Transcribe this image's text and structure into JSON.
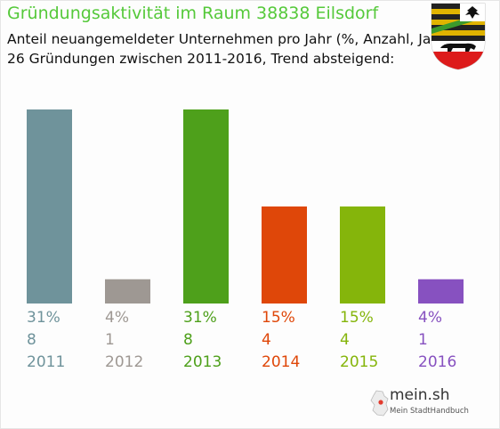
{
  "title": "Gründungsaktivität im Raum 38838 Eilsdorf",
  "subtitle_1": "Anteil neuangemeldeter Unternehmen pro Jahr (%, Anzahl, Jahr)",
  "subtitle_2": "26 Gründungen zwischen 2011-2016, Trend absteigend:",
  "brand": {
    "name": "mein.sh",
    "tagline": "Mein StadtHandbuch"
  },
  "chart_data": {
    "type": "bar",
    "categories": [
      "2011",
      "2012",
      "2013",
      "2014",
      "2015",
      "2016"
    ],
    "values": [
      8,
      1,
      8,
      4,
      4,
      1
    ],
    "percent_labels": [
      "31%",
      "4%",
      "31%",
      "15%",
      "15%",
      "4%"
    ],
    "colors": [
      "#6f939b",
      "#9e9893",
      "#4ea01b",
      "#df4709",
      "#85b50b",
      "#8751c0"
    ],
    "ylim": [
      0,
      8
    ]
  }
}
